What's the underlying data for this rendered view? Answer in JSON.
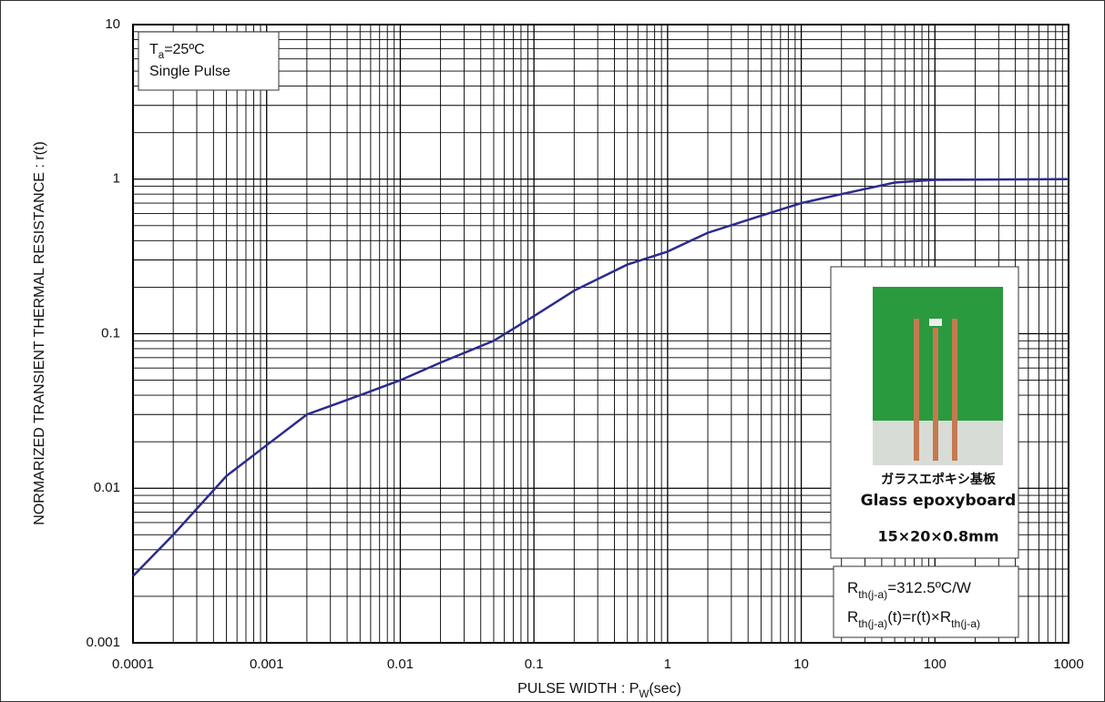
{
  "chart_data": {
    "type": "line",
    "x_label": [
      "PULSE WIDTH : P",
      "W",
      "(sec)"
    ],
    "y_label": "NORMARIZED TRANSIENT THERMAL RESISTANCE : r(t)",
    "xscale": "log",
    "yscale": "log",
    "grid": true,
    "minor_grid": true,
    "xlim": [
      0.0001,
      1000
    ],
    "ylim": [
      0.001,
      10
    ],
    "xticks": [
      0.0001,
      0.001,
      0.01,
      0.1,
      1,
      10,
      100,
      1000
    ],
    "yticks": [
      0.001,
      0.01,
      0.1,
      1,
      10
    ],
    "x": [
      0.0001,
      0.0002,
      0.0005,
      0.001,
      0.002,
      0.005,
      0.01,
      0.02,
      0.05,
      0.1,
      0.2,
      0.5,
      1,
      2,
      5,
      10,
      20,
      50,
      100,
      1000
    ],
    "series": [
      {
        "color": "#2b2b8f",
        "values": [
          0.0027,
          0.005,
          0.012,
          0.019,
          0.03,
          0.04,
          0.05,
          0.065,
          0.09,
          0.13,
          0.19,
          0.28,
          0.34,
          0.45,
          0.58,
          0.7,
          0.8,
          0.95,
          0.99,
          1.0
        ]
      }
    ],
    "condition_lines": [
      [
        "T",
        "a",
        "=25ºC"
      ],
      [
        "Single Pulse"
      ]
    ],
    "board": {
      "label_jp": "ガラスエポキシ基板",
      "label_en": "Glass epoxyboard",
      "size": "15×20×0.8mm"
    },
    "formula_lines": [
      [
        "R",
        "th(j-a)",
        "=312.5ºC/W"
      ],
      [
        "R",
        "th(j-a)",
        "(t)=r(t)×R",
        "th(j-a)"
      ]
    ]
  }
}
